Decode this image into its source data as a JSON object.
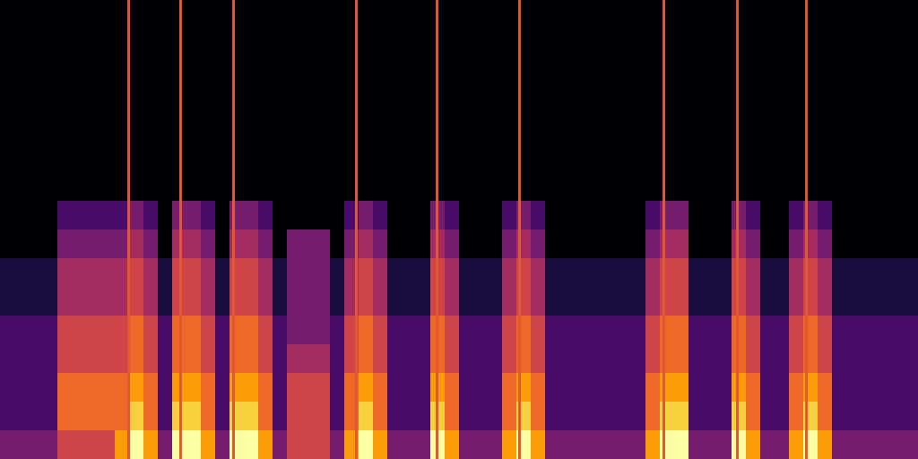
{
  "chart_data": {
    "type": "heatmap",
    "color": "inferno",
    "tick_labels": false,
    "xlim": [
      0,
      64
    ],
    "ylim": [
      0,
      16
    ],
    "zlim": [
      0,
      9
    ],
    "pulses": [
      8.94,
      12.56,
      16.25,
      24.81,
      30.44,
      36.19,
      46.25,
      51.38,
      56.19
    ],
    "cells": [
      [
        0,
        0,
        0,
        0,
        0,
        0,
        0,
        0,
        0,
        1,
        1,
        2,
        2,
        2,
        2,
        3
      ],
      [
        0,
        0,
        0,
        0,
        0,
        0,
        0,
        0,
        0,
        1,
        1,
        2,
        2,
        2,
        2,
        3
      ],
      [
        0,
        0,
        0,
        0,
        0,
        0,
        0,
        0,
        0,
        1,
        1,
        2,
        2,
        2,
        2,
        3
      ],
      [
        0,
        0,
        0,
        0,
        0,
        0,
        0,
        0,
        0,
        1,
        1,
        2,
        2,
        2,
        2,
        3
      ],
      [
        0,
        0,
        0,
        0,
        0,
        0,
        0,
        2,
        3,
        4,
        4,
        5,
        5,
        6,
        6,
        5
      ],
      [
        0,
        0,
        0,
        0,
        0,
        0,
        0,
        2,
        3,
        4,
        4,
        5,
        5,
        6,
        6,
        5
      ],
      [
        0,
        0,
        0,
        0,
        0,
        0,
        0,
        2,
        3,
        4,
        4,
        5,
        5,
        6,
        6,
        5
      ],
      [
        0,
        0,
        0,
        0,
        0,
        0,
        0,
        2,
        3,
        4,
        4,
        5,
        5,
        6,
        6,
        5
      ],
      [
        0,
        0,
        0,
        0,
        0,
        0,
        0,
        2,
        3,
        4,
        4,
        5,
        5,
        6,
        6,
        7
      ],
      [
        0,
        0,
        0,
        0,
        0,
        0,
        0,
        3,
        4,
        5,
        5,
        6,
        6,
        7,
        8,
        9
      ],
      [
        0,
        0,
        0,
        0,
        0,
        0,
        0,
        2,
        3,
        4,
        4,
        5,
        5,
        6,
        6,
        7
      ],
      [
        0,
        0,
        0,
        0,
        0,
        0,
        0,
        0,
        0,
        1,
        1,
        2,
        2,
        2,
        2,
        3
      ],
      [
        0,
        0,
        0,
        0,
        0,
        0,
        0,
        3,
        4,
        5,
        5,
        6,
        6,
        7,
        8,
        9
      ],
      [
        0,
        0,
        0,
        0,
        0,
        0,
        0,
        3,
        4,
        5,
        5,
        6,
        6,
        7,
        8,
        9
      ],
      [
        0,
        0,
        0,
        0,
        0,
        0,
        0,
        2,
        3,
        4,
        4,
        5,
        5,
        6,
        6,
        7
      ],
      [
        0,
        0,
        0,
        0,
        0,
        0,
        0,
        0,
        0,
        1,
        1,
        2,
        2,
        2,
        2,
        3
      ],
      [
        0,
        0,
        0,
        0,
        0,
        0,
        0,
        3,
        4,
        5,
        5,
        6,
        6,
        7,
        8,
        9
      ],
      [
        0,
        0,
        0,
        0,
        0,
        0,
        0,
        3,
        4,
        5,
        5,
        6,
        6,
        7,
        8,
        9
      ],
      [
        0,
        0,
        0,
        0,
        0,
        0,
        0,
        2,
        3,
        4,
        4,
        5,
        5,
        6,
        6,
        7
      ],
      [
        0,
        0,
        0,
        0,
        0,
        0,
        0,
        0,
        0,
        1,
        1,
        2,
        2,
        2,
        2,
        3
      ],
      [
        0,
        0,
        0,
        0,
        0,
        0,
        0,
        0,
        3,
        3,
        3,
        3,
        4,
        5,
        5,
        5
      ],
      [
        0,
        0,
        0,
        0,
        0,
        0,
        0,
        0,
        3,
        3,
        3,
        3,
        4,
        5,
        5,
        5
      ],
      [
        0,
        0,
        0,
        0,
        0,
        0,
        0,
        0,
        3,
        3,
        3,
        3,
        4,
        5,
        5,
        5
      ],
      [
        0,
        0,
        0,
        0,
        0,
        0,
        0,
        0,
        0,
        1,
        1,
        2,
        2,
        2,
        2,
        3
      ],
      [
        0,
        0,
        0,
        0,
        0,
        0,
        0,
        2,
        3,
        4,
        4,
        5,
        5,
        6,
        6,
        7
      ],
      [
        0,
        0,
        0,
        0,
        0,
        0,
        0,
        3,
        4,
        5,
        5,
        6,
        6,
        7,
        8,
        9
      ],
      [
        0,
        0,
        0,
        0,
        0,
        0,
        0,
        2,
        3,
        4,
        4,
        5,
        5,
        6,
        6,
        7
      ],
      [
        0,
        0,
        0,
        0,
        0,
        0,
        0,
        0,
        0,
        1,
        1,
        2,
        2,
        2,
        2,
        3
      ],
      [
        0,
        0,
        0,
        0,
        0,
        0,
        0,
        0,
        0,
        1,
        1,
        2,
        2,
        2,
        2,
        3
      ],
      [
        0,
        0,
        0,
        0,
        0,
        0,
        0,
        0,
        0,
        1,
        1,
        2,
        2,
        2,
        2,
        3
      ],
      [
        0,
        0,
        0,
        0,
        0,
        0,
        0,
        3,
        4,
        5,
        5,
        6,
        6,
        7,
        8,
        9
      ],
      [
        0,
        0,
        0,
        0,
        0,
        0,
        0,
        2,
        3,
        4,
        4,
        5,
        5,
        6,
        6,
        7
      ],
      [
        0,
        0,
        0,
        0,
        0,
        0,
        0,
        0,
        0,
        1,
        1,
        2,
        2,
        2,
        2,
        3
      ],
      [
        0,
        0,
        0,
        0,
        0,
        0,
        0,
        0,
        0,
        1,
        1,
        2,
        2,
        2,
        2,
        3
      ],
      [
        0,
        0,
        0,
        0,
        0,
        0,
        0,
        0,
        0,
        1,
        1,
        2,
        2,
        2,
        2,
        3
      ],
      [
        0,
        0,
        0,
        0,
        0,
        0,
        0,
        2,
        3,
        4,
        4,
        5,
        5,
        6,
        6,
        7
      ],
      [
        0,
        0,
        0,
        0,
        0,
        0,
        0,
        3,
        4,
        5,
        5,
        6,
        6,
        7,
        8,
        9
      ],
      [
        0,
        0,
        0,
        0,
        0,
        0,
        0,
        2,
        3,
        4,
        4,
        5,
        5,
        6,
        6,
        7
      ],
      [
        0,
        0,
        0,
        0,
        0,
        0,
        0,
        0,
        0,
        1,
        1,
        2,
        2,
        2,
        2,
        3
      ],
      [
        0,
        0,
        0,
        0,
        0,
        0,
        0,
        0,
        0,
        1,
        1,
        2,
        2,
        2,
        2,
        3
      ],
      [
        0,
        0,
        0,
        0,
        0,
        0,
        0,
        0,
        0,
        1,
        1,
        2,
        2,
        2,
        2,
        3
      ],
      [
        0,
        0,
        0,
        0,
        0,
        0,
        0,
        0,
        0,
        1,
        1,
        2,
        2,
        2,
        2,
        3
      ],
      [
        0,
        0,
        0,
        0,
        0,
        0,
        0,
        0,
        0,
        1,
        1,
        2,
        2,
        2,
        2,
        3
      ],
      [
        0,
        0,
        0,
        0,
        0,
        0,
        0,
        0,
        0,
        1,
        1,
        2,
        2,
        2,
        2,
        3
      ],
      [
        0,
        0,
        0,
        0,
        0,
        0,
        0,
        0,
        0,
        1,
        1,
        2,
        2,
        2,
        2,
        3
      ],
      [
        0,
        0,
        0,
        0,
        0,
        0,
        0,
        2,
        3,
        4,
        4,
        5,
        5,
        6,
        6,
        7
      ],
      [
        0,
        0,
        0,
        0,
        0,
        0,
        0,
        3,
        4,
        5,
        5,
        6,
        6,
        7,
        8,
        9
      ],
      [
        0,
        0,
        0,
        0,
        0,
        0,
        0,
        3,
        4,
        5,
        5,
        6,
        6,
        7,
        8,
        9
      ],
      [
        0,
        0,
        0,
        0,
        0,
        0,
        0,
        0,
        0,
        1,
        1,
        2,
        2,
        2,
        2,
        3
      ],
      [
        0,
        0,
        0,
        0,
        0,
        0,
        0,
        0,
        0,
        1,
        1,
        2,
        2,
        2,
        2,
        3
      ],
      [
        0,
        0,
        0,
        0,
        0,
        0,
        0,
        0,
        0,
        1,
        1,
        2,
        2,
        2,
        2,
        3
      ],
      [
        0,
        0,
        0,
        0,
        0,
        0,
        0,
        3,
        4,
        5,
        5,
        6,
        6,
        7,
        8,
        9
      ],
      [
        0,
        0,
        0,
        0,
        0,
        0,
        0,
        2,
        3,
        4,
        4,
        5,
        5,
        6,
        6,
        7
      ],
      [
        0,
        0,
        0,
        0,
        0,
        0,
        0,
        0,
        0,
        1,
        1,
        2,
        2,
        2,
        2,
        3
      ],
      [
        0,
        0,
        0,
        0,
        0,
        0,
        0,
        0,
        0,
        1,
        1,
        2,
        2,
        2,
        2,
        3
      ],
      [
        0,
        0,
        0,
        0,
        0,
        0,
        0,
        2,
        3,
        4,
        4,
        5,
        5,
        6,
        6,
        7
      ],
      [
        0,
        0,
        0,
        0,
        0,
        0,
        0,
        3,
        4,
        5,
        5,
        6,
        6,
        7,
        8,
        9
      ],
      [
        0,
        0,
        0,
        0,
        0,
        0,
        0,
        2,
        3,
        4,
        4,
        5,
        5,
        6,
        6,
        7
      ],
      [
        0,
        0,
        0,
        0,
        0,
        0,
        0,
        0,
        0,
        1,
        1,
        2,
        2,
        2,
        2,
        3
      ],
      [
        0,
        0,
        0,
        0,
        0,
        0,
        0,
        0,
        0,
        1,
        1,
        2,
        2,
        2,
        2,
        3
      ],
      [
        0,
        0,
        0,
        0,
        0,
        0,
        0,
        0,
        0,
        1,
        1,
        2,
        2,
        2,
        2,
        3
      ],
      [
        0,
        0,
        0,
        0,
        0,
        0,
        0,
        0,
        0,
        1,
        1,
        2,
        2,
        2,
        2,
        3
      ],
      [
        0,
        0,
        0,
        0,
        0,
        0,
        0,
        0,
        0,
        1,
        1,
        2,
        2,
        2,
        2,
        3
      ],
      [
        0,
        0,
        0,
        0,
        0,
        0,
        0,
        0,
        0,
        1,
        1,
        2,
        2,
        2,
        2,
        3
      ]
    ]
  }
}
